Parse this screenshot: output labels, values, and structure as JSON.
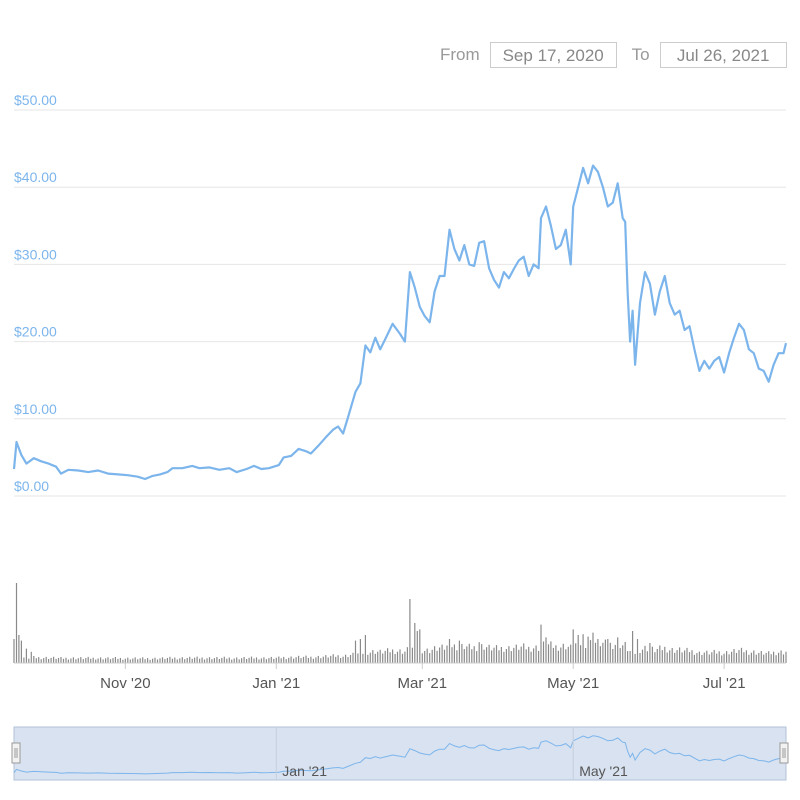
{
  "range_selector": {
    "from_label": "From",
    "from_value": "Sep 17, 2020",
    "to_label": "To",
    "to_value": "Jul 26, 2021"
  },
  "colors": {
    "line": "#7cb5ec",
    "grid": "#e6e6e6",
    "volume_bar": "#8a8a8a",
    "navigator_fill": "#d8e2f0",
    "navigator_outline": "#b3c3d9"
  },
  "chart_data": [
    {
      "type": "line",
      "title": "",
      "xlabel": "",
      "ylabel": "",
      "x_axis": "date",
      "xlim": [
        "2020-09-17",
        "2021-07-26"
      ],
      "ylim": [
        0,
        50
      ],
      "y_ticks": [
        {
          "value": 0,
          "label": "$0.00"
        },
        {
          "value": 10,
          "label": "$10.00"
        },
        {
          "value": 20,
          "label": "$20.00"
        },
        {
          "value": 30,
          "label": "$30.00"
        },
        {
          "value": 40,
          "label": "$40.00"
        },
        {
          "value": 50,
          "label": "$50.00"
        }
      ],
      "x_ticks": [
        {
          "date": "2020-11-01",
          "label": "Nov '20"
        },
        {
          "date": "2021-01-01",
          "label": "Jan '21"
        },
        {
          "date": "2021-03-01",
          "label": "Mar '21"
        },
        {
          "date": "2021-05-01",
          "label": "May '21"
        },
        {
          "date": "2021-07-01",
          "label": "Jul '21"
        }
      ],
      "grid": true,
      "series": [
        {
          "points": [
            [
              "2020-09-17",
              3.5
            ],
            [
              "2020-09-18",
              7.0
            ],
            [
              "2020-09-20",
              5.3
            ],
            [
              "2020-09-22",
              4.2
            ],
            [
              "2020-09-25",
              4.9
            ],
            [
              "2020-09-28",
              4.5
            ],
            [
              "2020-10-01",
              4.2
            ],
            [
              "2020-10-04",
              3.8
            ],
            [
              "2020-10-06",
              2.9
            ],
            [
              "2020-10-09",
              3.4
            ],
            [
              "2020-10-13",
              3.3
            ],
            [
              "2020-10-17",
              3.1
            ],
            [
              "2020-10-21",
              3.3
            ],
            [
              "2020-10-25",
              2.9
            ],
            [
              "2020-10-29",
              2.8
            ],
            [
              "2020-11-02",
              2.7
            ],
            [
              "2020-11-06",
              2.5
            ],
            [
              "2020-11-09",
              2.2
            ],
            [
              "2020-11-12",
              2.6
            ],
            [
              "2020-11-15",
              2.8
            ],
            [
              "2020-11-18",
              3.1
            ],
            [
              "2020-11-20",
              3.6
            ],
            [
              "2020-11-24",
              3.6
            ],
            [
              "2020-11-28",
              3.9
            ],
            [
              "2020-12-01",
              3.6
            ],
            [
              "2020-12-05",
              3.7
            ],
            [
              "2020-12-09",
              3.4
            ],
            [
              "2020-12-13",
              3.6
            ],
            [
              "2020-12-16",
              3.1
            ],
            [
              "2020-12-20",
              3.5
            ],
            [
              "2020-12-23",
              3.9
            ],
            [
              "2020-12-26",
              3.5
            ],
            [
              "2020-12-29",
              3.6
            ],
            [
              "2021-01-02",
              4.0
            ],
            [
              "2021-01-04",
              5.0
            ],
            [
              "2021-01-07",
              5.2
            ],
            [
              "2021-01-10",
              6.1
            ],
            [
              "2021-01-13",
              5.8
            ],
            [
              "2021-01-15",
              5.5
            ],
            [
              "2021-01-18",
              6.5
            ],
            [
              "2021-01-21",
              7.6
            ],
            [
              "2021-01-24",
              8.6
            ],
            [
              "2021-01-26",
              9.0
            ],
            [
              "2021-01-28",
              8.1
            ],
            [
              "2021-01-30",
              10.2
            ],
            [
              "2021-02-02",
              13.5
            ],
            [
              "2021-02-04",
              14.6
            ],
            [
              "2021-02-06",
              19.5
            ],
            [
              "2021-02-08",
              18.6
            ],
            [
              "2021-02-10",
              20.5
            ],
            [
              "2021-02-12",
              19.0
            ],
            [
              "2021-02-14",
              20.3
            ],
            [
              "2021-02-17",
              22.3
            ],
            [
              "2021-02-20",
              21.0
            ],
            [
              "2021-02-22",
              20.0
            ],
            [
              "2021-02-24",
              29.0
            ],
            [
              "2021-02-26",
              27.0
            ],
            [
              "2021-02-28",
              24.5
            ],
            [
              "2021-03-02",
              23.3
            ],
            [
              "2021-03-04",
              22.5
            ],
            [
              "2021-03-06",
              26.5
            ],
            [
              "2021-03-08",
              28.5
            ],
            [
              "2021-03-10",
              28.5
            ],
            [
              "2021-03-12",
              34.5
            ],
            [
              "2021-03-14",
              32.0
            ],
            [
              "2021-03-16",
              30.5
            ],
            [
              "2021-03-18",
              32.5
            ],
            [
              "2021-03-20",
              30.0
            ],
            [
              "2021-03-22",
              29.8
            ],
            [
              "2021-03-24",
              32.8
            ],
            [
              "2021-03-26",
              33.0
            ],
            [
              "2021-03-28",
              29.5
            ],
            [
              "2021-03-30",
              28.0
            ],
            [
              "2021-04-01",
              27.0
            ],
            [
              "2021-04-03",
              29.0
            ],
            [
              "2021-04-05",
              28.2
            ],
            [
              "2021-04-07",
              29.4
            ],
            [
              "2021-04-09",
              30.5
            ],
            [
              "2021-04-11",
              31.0
            ],
            [
              "2021-04-13",
              28.5
            ],
            [
              "2021-04-15",
              30.0
            ],
            [
              "2021-04-17",
              29.5
            ],
            [
              "2021-04-18",
              36.0
            ],
            [
              "2021-04-20",
              37.5
            ],
            [
              "2021-04-22",
              35.0
            ],
            [
              "2021-04-24",
              32.0
            ],
            [
              "2021-04-26",
              32.5
            ],
            [
              "2021-04-28",
              34.5
            ],
            [
              "2021-04-30",
              30.0
            ],
            [
              "2021-05-01",
              37.5
            ],
            [
              "2021-05-03",
              40.0
            ],
            [
              "2021-05-05",
              42.5
            ],
            [
              "2021-05-07",
              40.5
            ],
            [
              "2021-05-09",
              42.8
            ],
            [
              "2021-05-11",
              42.0
            ],
            [
              "2021-05-13",
              40.0
            ],
            [
              "2021-05-15",
              37.5
            ],
            [
              "2021-05-17",
              38.0
            ],
            [
              "2021-05-19",
              40.5
            ],
            [
              "2021-05-21",
              36.0
            ],
            [
              "2021-05-22",
              35.5
            ],
            [
              "2021-05-23",
              26.5
            ],
            [
              "2021-05-24",
              20.0
            ],
            [
              "2021-05-25",
              24.0
            ],
            [
              "2021-05-26",
              17.0
            ],
            [
              "2021-05-28",
              25.0
            ],
            [
              "2021-05-30",
              29.0
            ],
            [
              "2021-06-01",
              27.5
            ],
            [
              "2021-06-03",
              23.5
            ],
            [
              "2021-06-05",
              26.5
            ],
            [
              "2021-06-07",
              28.5
            ],
            [
              "2021-06-09",
              25.0
            ],
            [
              "2021-06-11",
              23.5
            ],
            [
              "2021-06-13",
              24.0
            ],
            [
              "2021-06-15",
              21.5
            ],
            [
              "2021-06-17",
              22.0
            ],
            [
              "2021-06-19",
              19.0
            ],
            [
              "2021-06-21",
              16.2
            ],
            [
              "2021-06-23",
              17.5
            ],
            [
              "2021-06-25",
              16.5
            ],
            [
              "2021-06-27",
              17.5
            ],
            [
              "2021-06-29",
              18.0
            ],
            [
              "2021-07-01",
              16.0
            ],
            [
              "2021-07-03",
              18.5
            ],
            [
              "2021-07-05",
              20.5
            ],
            [
              "2021-07-07",
              22.3
            ],
            [
              "2021-07-09",
              21.5
            ],
            [
              "2021-07-11",
              19.0
            ],
            [
              "2021-07-13",
              18.5
            ],
            [
              "2021-07-15",
              16.5
            ],
            [
              "2021-07-17",
              16.2
            ],
            [
              "2021-07-19",
              14.8
            ],
            [
              "2021-07-21",
              17.0
            ],
            [
              "2021-07-23",
              18.5
            ],
            [
              "2021-07-25",
              18.5
            ],
            [
              "2021-07-26",
              19.8
            ]
          ]
        }
      ]
    },
    {
      "type": "bar",
      "title": "",
      "xlabel": "",
      "ylabel": "",
      "x_axis": "date",
      "xlim": [
        "2020-09-17",
        "2021-07-26"
      ],
      "grid": false,
      "values_relative": true,
      "spikes": [
        [
          "2020-09-17",
          30
        ],
        [
          "2020-09-18",
          100
        ],
        [
          "2020-09-19",
          35
        ],
        [
          "2020-09-20",
          28
        ],
        [
          "2020-09-22",
          18
        ],
        [
          "2020-09-24",
          14
        ],
        [
          "2021-02-24",
          80
        ],
        [
          "2021-02-26",
          50
        ],
        [
          "2021-02-27",
          40
        ],
        [
          "2021-02-28",
          42
        ],
        [
          "2021-04-18",
          48
        ],
        [
          "2021-04-20",
          32
        ],
        [
          "2021-05-01",
          42
        ],
        [
          "2021-05-03",
          35
        ],
        [
          "2021-05-05",
          36
        ],
        [
          "2021-05-07",
          33
        ],
        [
          "2021-05-09",
          38
        ],
        [
          "2021-05-15",
          30
        ],
        [
          "2021-05-19",
          32
        ],
        [
          "2021-05-25",
          40
        ],
        [
          "2021-05-27",
          30
        ],
        [
          "2021-06-01",
          25
        ],
        [
          "2021-02-02",
          28
        ],
        [
          "2021-02-06",
          35
        ],
        [
          "2021-02-04",
          30
        ],
        [
          "2021-03-12",
          30
        ],
        [
          "2021-03-16",
          28
        ],
        [
          "2021-03-24",
          26
        ]
      ]
    },
    {
      "type": "area",
      "title": "",
      "xlabel": "",
      "ylabel": "",
      "x_axis": "date",
      "xlim": [
        "2020-09-17",
        "2021-07-26"
      ],
      "x_ticks": [
        {
          "date": "2021-01-01",
          "label": "Jan '21"
        },
        {
          "date": "2021-05-01",
          "label": "May '21"
        }
      ],
      "grid": false,
      "mirrors_series_of_first_chart": true
    }
  ]
}
